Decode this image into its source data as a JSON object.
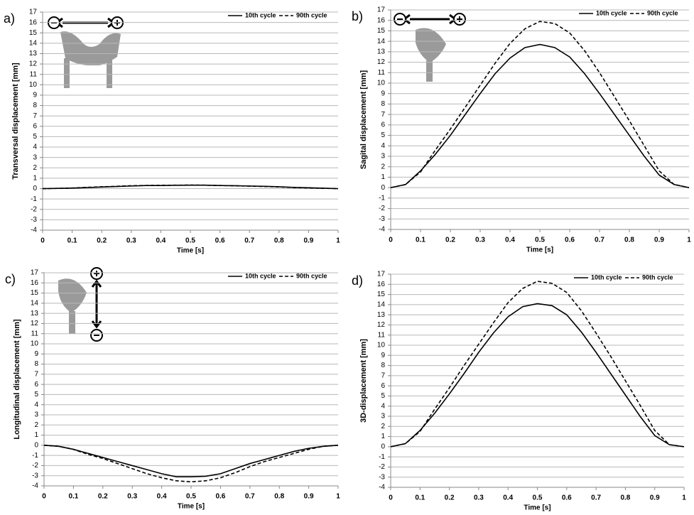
{
  "chart_data": [
    {
      "type": "line",
      "label": "a)",
      "ylabel": "Transversal displacement [mm]",
      "xlabel": "Time [s]",
      "x": [
        0,
        0.05,
        0.1,
        0.15,
        0.2,
        0.25,
        0.3,
        0.35,
        0.4,
        0.45,
        0.5,
        0.55,
        0.6,
        0.65,
        0.7,
        0.75,
        0.8,
        0.85,
        0.9,
        0.95,
        1
      ],
      "series": [
        {
          "name": "10th cycle",
          "color": "#000000",
          "dashed": false,
          "values": [
            0,
            0.02,
            0.05,
            0.1,
            0.15,
            0.2,
            0.25,
            0.3,
            0.3,
            0.32,
            0.33,
            0.33,
            0.3,
            0.28,
            0.25,
            0.22,
            0.18,
            0.12,
            0.08,
            0.04,
            0
          ]
        },
        {
          "name": "90th cycle",
          "color": "#000000",
          "dashed": true,
          "values": [
            0,
            0.02,
            0.06,
            0.12,
            0.18,
            0.22,
            0.28,
            0.3,
            0.32,
            0.33,
            0.34,
            0.33,
            0.3,
            0.27,
            0.24,
            0.2,
            0.16,
            0.1,
            0.06,
            0.03,
            0
          ]
        }
      ],
      "xlim": [
        0,
        1
      ],
      "xticks": [
        0,
        0.1,
        0.2,
        0.3,
        0.4,
        0.5,
        0.6,
        0.7,
        0.8,
        0.9,
        1
      ],
      "ylim": [
        -4,
        17
      ],
      "yticks": [
        -4,
        -3,
        -2,
        -1,
        0,
        1,
        2,
        3,
        4,
        5,
        6,
        7,
        8,
        9,
        10,
        11,
        12,
        13,
        14,
        15,
        16,
        17
      ],
      "grid": true,
      "legend": "top-right"
    },
    {
      "type": "line",
      "label": "b)",
      "ylabel": "Sagital displacement  [mm]",
      "xlabel": "Time [s]",
      "x": [
        0,
        0.05,
        0.1,
        0.15,
        0.2,
        0.25,
        0.3,
        0.35,
        0.4,
        0.45,
        0.5,
        0.55,
        0.6,
        0.65,
        0.7,
        0.75,
        0.8,
        0.85,
        0.9,
        0.95,
        1
      ],
      "series": [
        {
          "name": "10th cycle",
          "color": "#000000",
          "dashed": false,
          "values": [
            0,
            0.3,
            1.6,
            3.2,
            5.0,
            7.0,
            9.0,
            10.9,
            12.4,
            13.4,
            13.7,
            13.4,
            12.5,
            10.9,
            9.0,
            7.0,
            5.0,
            3.0,
            1.2,
            0.3,
            0
          ]
        },
        {
          "name": "90th cycle",
          "color": "#000000",
          "dashed": true,
          "values": [
            0,
            0.3,
            1.5,
            3.6,
            5.6,
            7.7,
            9.8,
            11.9,
            13.8,
            15.2,
            15.9,
            15.7,
            14.8,
            13.1,
            11.0,
            8.7,
            6.4,
            4.0,
            1.6,
            0.3,
            0
          ]
        }
      ],
      "xlim": [
        0,
        1
      ],
      "xticks": [
        0,
        0.1,
        0.2,
        0.3,
        0.4,
        0.5,
        0.6,
        0.7,
        0.8,
        0.9,
        1
      ],
      "ylim": [
        -4,
        17
      ],
      "yticks": [
        -4,
        -3,
        -2,
        -1,
        0,
        1,
        2,
        3,
        4,
        5,
        6,
        7,
        8,
        9,
        10,
        11,
        12,
        13,
        14,
        15,
        16,
        17
      ],
      "grid": true,
      "legend": "top-right"
    },
    {
      "type": "line",
      "label": "c)",
      "ylabel": "Longitudinal displacement [mm]",
      "xlabel": "Time [s]",
      "x": [
        0,
        0.05,
        0.1,
        0.15,
        0.2,
        0.25,
        0.3,
        0.35,
        0.4,
        0.45,
        0.5,
        0.55,
        0.6,
        0.65,
        0.7,
        0.75,
        0.8,
        0.85,
        0.9,
        0.95,
        1
      ],
      "series": [
        {
          "name": "10th cycle",
          "color": "#000000",
          "dashed": false,
          "values": [
            0,
            -0.1,
            -0.4,
            -0.8,
            -1.2,
            -1.6,
            -2.0,
            -2.4,
            -2.8,
            -3.1,
            -3.1,
            -3.05,
            -2.8,
            -2.3,
            -1.8,
            -1.4,
            -1.0,
            -0.6,
            -0.3,
            -0.1,
            0
          ]
        },
        {
          "name": "90th cycle",
          "color": "#000000",
          "dashed": true,
          "values": [
            0,
            -0.1,
            -0.4,
            -0.9,
            -1.3,
            -1.8,
            -2.3,
            -2.8,
            -3.2,
            -3.5,
            -3.6,
            -3.5,
            -3.2,
            -2.7,
            -2.1,
            -1.6,
            -1.2,
            -0.8,
            -0.4,
            -0.1,
            0
          ]
        }
      ],
      "xlim": [
        0,
        1
      ],
      "xticks": [
        0,
        0.1,
        0.2,
        0.3,
        0.4,
        0.5,
        0.6,
        0.7,
        0.8,
        0.9,
        1
      ],
      "ylim": [
        -4,
        17
      ],
      "yticks": [
        -4,
        -3,
        -2,
        -1,
        0,
        1,
        2,
        3,
        4,
        5,
        6,
        7,
        8,
        9,
        10,
        11,
        12,
        13,
        14,
        15,
        16,
        17
      ],
      "grid": true,
      "legend": "top-right"
    },
    {
      "type": "line",
      "label": "d)",
      "ylabel": "3D-displacement [mm]",
      "xlabel": "Time [s]",
      "x": [
        0,
        0.05,
        0.1,
        0.15,
        0.2,
        0.25,
        0.3,
        0.35,
        0.4,
        0.45,
        0.5,
        0.55,
        0.6,
        0.65,
        0.7,
        0.75,
        0.8,
        0.85,
        0.9,
        0.95,
        1
      ],
      "series": [
        {
          "name": "10th cycle",
          "color": "#000000",
          "dashed": false,
          "values": [
            0,
            0.3,
            1.6,
            3.3,
            5.2,
            7.2,
            9.3,
            11.2,
            12.8,
            13.8,
            14.1,
            13.9,
            13.0,
            11.3,
            9.3,
            7.2,
            5.1,
            3.0,
            1.1,
            0.2,
            0
          ]
        },
        {
          "name": "90th cycle",
          "color": "#000000",
          "dashed": true,
          "values": [
            0,
            0.3,
            1.5,
            3.7,
            5.8,
            8.0,
            10.1,
            12.2,
            14.2,
            15.6,
            16.3,
            16.1,
            15.2,
            13.4,
            11.2,
            8.9,
            6.5,
            4.1,
            1.6,
            0.2,
            0
          ]
        }
      ],
      "xlim": [
        0,
        1
      ],
      "xticks": [
        0,
        0.1,
        0.2,
        0.3,
        0.4,
        0.5,
        0.6,
        0.7,
        0.8,
        0.9,
        1
      ],
      "ylim": [
        -4,
        17
      ],
      "yticks": [
        -4,
        -3,
        -2,
        -1,
        0,
        1,
        2,
        3,
        4,
        5,
        6,
        7,
        8,
        9,
        10,
        11,
        12,
        13,
        14,
        15,
        16,
        17
      ],
      "grid": true,
      "legend": "top-right"
    }
  ]
}
